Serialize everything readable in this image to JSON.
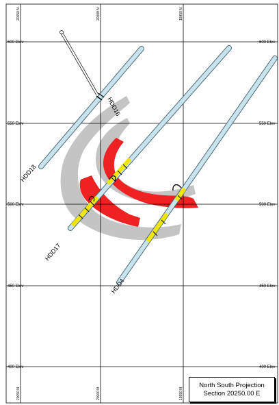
{
  "title": {
    "line1": "North South Projection",
    "line2": "Section 20250.00 E"
  },
  "elevations": {
    "e600": "600 Elev",
    "e550": "550 Elev",
    "e500": "500 Elev",
    "e450": "450 Elev",
    "e400": "400 Elev"
  },
  "northings_top": [
    "20050 N",
    "20000 N",
    "19950 N"
  ],
  "northings_bottom": [
    "20050 N",
    "20000 N",
    "19950 N"
  ],
  "drillholes": {
    "hdd18": "HDD18",
    "hdd17": "HDD17",
    "hdd16": "HDD16",
    "hdd4": "HDD4"
  },
  "colors": {
    "hole_fill": "#c8e3ec",
    "hole_outline": "#4a6a78",
    "ore_red": "#ee2222",
    "halo_gray": "#c4c4c4",
    "intercept_yellow": "#f2e600"
  }
}
